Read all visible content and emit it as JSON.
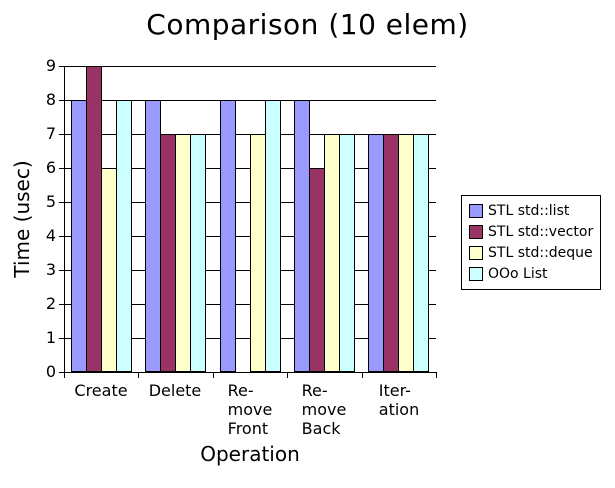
{
  "chart_data": {
    "type": "bar",
    "title": "Comparison (10 elem)",
    "xlabel": "Operation",
    "ylabel": "Time (usec)",
    "ylim": [
      0,
      9
    ],
    "ytick_interval": 1,
    "grid": true,
    "legend_position": "right",
    "background_color": "#FFFFFF",
    "axis_color": "#000000",
    "categories": [
      "Create",
      "Delete",
      "Re-\nmove\nFront",
      "Re-\nmove\nBack",
      "Iter-\nation"
    ],
    "series": [
      {
        "name": "STL std::list",
        "color": "#9999FF",
        "values": [
          8,
          8,
          8,
          8,
          7
        ]
      },
      {
        "name": "STL std::vector",
        "color": "#993366",
        "values": [
          9,
          7,
          0,
          6,
          7
        ]
      },
      {
        "name": "STL std::deque",
        "color": "#FFFFCC",
        "values": [
          6,
          7,
          7,
          7,
          7
        ]
      },
      {
        "name": "OOo List",
        "color": "#CCFFFF",
        "values": [
          8,
          7,
          8,
          7,
          7
        ]
      }
    ]
  }
}
